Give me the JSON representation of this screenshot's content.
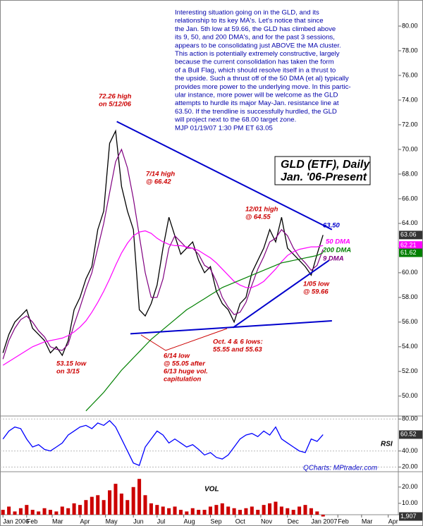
{
  "chart_data": [
    {
      "type": "line",
      "title": "GLD (ETF), Daily",
      "subtitle": "Jan. '06-Present",
      "categories": [
        null,
        null,
        null,
        null,
        null,
        null,
        null,
        null,
        null,
        null,
        null,
        null,
        null,
        null,
        null,
        null,
        null,
        null,
        null,
        null,
        null,
        null,
        null,
        null,
        null,
        null,
        null,
        null,
        null,
        null,
        null,
        null,
        null,
        null,
        null,
        null,
        null,
        null,
        null,
        null,
        null,
        null,
        null,
        null,
        null,
        null,
        null,
        null,
        null,
        null,
        null,
        null,
        null,
        null,
        null
      ],
      "xlim": [
        -0.5,
        66.7
      ],
      "ylim": [
        48.5,
        82
      ],
      "yticks": [
        {
          "value": 50,
          "label": "50.00"
        },
        {
          "value": 52,
          "label": "52.00"
        },
        {
          "value": 54,
          "label": "54.00"
        },
        {
          "value": 56,
          "label": "56.00"
        },
        {
          "value": 58,
          "label": "58.00"
        },
        {
          "value": 60,
          "label": "60.00"
        },
        {
          "value": 62,
          "label": "62.00"
        },
        {
          "value": 64,
          "label": "64.00"
        },
        {
          "value": 66,
          "label": "66.00"
        },
        {
          "value": 68,
          "label": "68.00"
        },
        {
          "value": 70,
          "label": "70.00"
        },
        {
          "value": 72,
          "label": "72.00"
        },
        {
          "value": 74,
          "label": "74.00"
        },
        {
          "value": 76,
          "label": "76.00"
        },
        {
          "value": 78,
          "label": "78.00"
        },
        {
          "value": 80,
          "label": "80.00"
        }
      ],
      "series": [
        {
          "name": "GLD",
          "color": "#000000",
          "values": [
            53.5,
            55,
            56,
            56.5,
            57,
            55.5,
            55,
            54.5,
            53.5,
            54,
            53.3,
            54.5,
            57,
            58,
            59.5,
            60.5,
            63.5,
            65,
            70.5,
            71.5,
            67,
            65,
            63.5,
            57,
            56.5,
            57.5,
            59,
            62,
            64.5,
            63,
            61.5,
            62,
            62.5,
            61,
            60,
            60.5,
            58.5,
            57.5,
            57,
            56,
            57.5,
            58,
            60,
            61,
            62,
            63.5,
            62.5,
            64.5,
            62,
            61.5,
            61,
            60.5,
            59.8,
            61.5,
            63.06
          ]
        },
        {
          "name": "9 DMA",
          "color": "#800080",
          "values": [
            53,
            54.5,
            55.5,
            56.2,
            56.5,
            56,
            55.3,
            54.8,
            54,
            53.8,
            53.7,
            54.2,
            55.8,
            57.2,
            58.7,
            60,
            62,
            64,
            66.5,
            69,
            70,
            68.5,
            66,
            63,
            60,
            58,
            58,
            59.5,
            62,
            63,
            62.5,
            62,
            62,
            61.5,
            60.6,
            60.3,
            59.3,
            58,
            57.2,
            56.6,
            56.8,
            57.6,
            59,
            60.3,
            61.3,
            62.5,
            62.8,
            63.5,
            63,
            62,
            61.3,
            60.8,
            60.2,
            60.6,
            61.9
          ]
        },
        {
          "name": "50 DMA",
          "color": "#ff00ff",
          "values": [
            52.5,
            52.8,
            53.1,
            53.4,
            53.7,
            54,
            54.2,
            54.4,
            54.5,
            54.6,
            54.7,
            54.9,
            55.2,
            55.6,
            56.1,
            56.8,
            57.6,
            58.5,
            59.5,
            60.6,
            61.6,
            62.4,
            63,
            63.3,
            63.4,
            63.2,
            62.8,
            62.5,
            62.3,
            62.2,
            62.2,
            62.1,
            62,
            61.8,
            61.5,
            61.2,
            60.8,
            60.3,
            59.8,
            59.3,
            59,
            58.8,
            58.8,
            59,
            59.3,
            59.8,
            60.3,
            60.9,
            61.4,
            61.7,
            61.9,
            62,
            62.1,
            62.1,
            62.21
          ]
        },
        {
          "name": "200 DMA",
          "color": "#008000",
          "values": [
            null,
            null,
            null,
            null,
            null,
            null,
            null,
            null,
            null,
            null,
            null,
            null,
            null,
            null,
            48.8,
            49.3,
            49.8,
            50.3,
            50.9,
            51.5,
            52.1,
            52.6,
            53.1,
            53.6,
            54.1,
            54.6,
            55,
            55.4,
            55.8,
            56.2,
            56.6,
            57,
            57.3,
            57.6,
            57.9,
            58.2,
            58.5,
            58.8,
            59,
            59.2,
            59.4,
            59.6,
            59.8,
            60,
            60.2,
            60.4,
            60.6,
            60.8,
            60.9,
            61,
            61.1,
            61.2,
            61.3,
            61.4,
            61.62
          ]
        }
      ],
      "last_labels": [
        {
          "value": 63.06,
          "label": "63.06",
          "color": "#333333"
        },
        {
          "value": 62.21,
          "label": "62.21",
          "color": "#ff00ff"
        },
        {
          "value": 61.62,
          "label": "61.62",
          "color": "#008000"
        }
      ],
      "trendlines": [
        {
          "color": "#0000cc",
          "x": [
            19.2,
            55.5
          ],
          "y": [
            72.26,
            63.5
          ]
        },
        {
          "color": "#0000cc",
          "x": [
            21.5,
            55.5
          ],
          "y": [
            55.05,
            56.1
          ]
        },
        {
          "color": "#0000cc",
          "x": [
            38.8,
            55
          ],
          "y": [
            55.55,
            61
          ]
        }
      ],
      "annotations": [
        {
          "lines": [
            "72.26 high",
            "on 5/12/06"
          ],
          "color": "#cc0000"
        },
        {
          "lines": [
            "7/14 high",
            "@ 66.42"
          ],
          "color": "#cc0000"
        },
        {
          "lines": [
            "12/01 high",
            "@ 64.55"
          ],
          "color": "#cc0000"
        },
        {
          "lines": [
            "63.50"
          ],
          "color": "#0000cc"
        },
        {
          "lines": [
            "50 DMA"
          ],
          "color": "#ff00ff"
        },
        {
          "lines": [
            "200 DMA"
          ],
          "color": "#008000"
        },
        {
          "lines": [
            "9 DMA"
          ],
          "color": "#800080"
        },
        {
          "lines": [
            "1/05 low",
            "@ 59.66"
          ],
          "color": "#cc0000"
        },
        {
          "lines": [
            "Oct. 4 & 6 lows:",
            "55.55 and 55.63"
          ],
          "color": "#cc0000"
        },
        {
          "lines": [
            "6/14 low",
            "@ 55.05 after",
            "6/13 huge vol.",
            "capitulation"
          ],
          "color": "#cc0000"
        },
        {
          "lines": [
            "53.15 low",
            "on 3/15"
          ],
          "color": "#cc0000"
        }
      ],
      "note_lines": [
        "Interesting situation going on in the GLD, and its",
        "relationship to its key MA's.  Let's notice that since",
        "the Jan. 5th low at 59.66, the GLD has climbed above",
        "its 9, 50, and 200 DMA's, and for the past 3 sessions,",
        "appears to be consolidating just ABOVE the MA cluster.",
        "This action is potentially extremely constructive, largely",
        "because the current consolidation has taken the form",
        "of a Bull Flag, which should resolve itself in a thrust to",
        "the upside. Such a thrust off of the 50 DMA (et al) typically",
        "provides more power to the underlying move.  In this partic-",
        "ular instance, more power will be welcome as the GLD",
        "attempts to hurdle its major May-Jan. resistance line at",
        "63.50. If the trendline is successfully hurdled, the GLD",
        "will project next to the 68.00 target zone.",
        "MJP 01/19/07 1:30 PM ET 63.05"
      ]
    },
    {
      "type": "line",
      "title": "RSI",
      "source": "QCharts: MPtrader.com",
      "ylim": [
        15,
        82
      ],
      "yticks": [
        {
          "value": 20,
          "label": "20.00"
        },
        {
          "value": 40,
          "label": "40.00"
        },
        {
          "value": 80,
          "label": "80.00"
        }
      ],
      "series": [
        {
          "name": "RSI",
          "color": "#0000ff",
          "values": [
            55,
            65,
            70,
            68,
            55,
            45,
            48,
            42,
            40,
            45,
            50,
            60,
            65,
            70,
            72,
            68,
            75,
            72,
            78,
            70,
            55,
            40,
            25,
            22,
            45,
            55,
            65,
            60,
            50,
            55,
            50,
            45,
            48,
            42,
            35,
            38,
            32,
            30,
            35,
            45,
            55,
            60,
            62,
            58,
            65,
            60,
            70,
            55,
            50,
            45,
            40,
            38,
            55,
            52,
            60.52
          ]
        }
      ],
      "last_labels": [
        {
          "value": 60.52,
          "label": "60.52",
          "color": "#333333"
        }
      ]
    },
    {
      "type": "bar",
      "title": "VOL",
      "ylim": [
        3,
        29
      ],
      "color": "#cc0000",
      "yticks": [
        {
          "value": 10,
          "label": "10.00"
        },
        {
          "value": 20,
          "label": "20.00"
        }
      ],
      "values": [
        6,
        8,
        5,
        7,
        9,
        6,
        5,
        7,
        6,
        5,
        8,
        7,
        10,
        9,
        12,
        14,
        15,
        12,
        18,
        22,
        16,
        12,
        20,
        25,
        15,
        10,
        9,
        8,
        7,
        8,
        6,
        5,
        7,
        6,
        6,
        8,
        9,
        10,
        8,
        7,
        6,
        7,
        8,
        6,
        9,
        10,
        11,
        8,
        7,
        6,
        8,
        9,
        7,
        5,
        1.907
      ],
      "last_labels": [
        {
          "value": 1.907,
          "label": "1,907",
          "color": "#333333"
        }
      ],
      "xticks": [
        {
          "value": 0,
          "label": "Jan 2006"
        },
        {
          "value": 4,
          "label": "Feb"
        },
        {
          "value": 8.3,
          "label": "Mar"
        },
        {
          "value": 13,
          "label": "Apr"
        },
        {
          "value": 17.3,
          "label": "May"
        },
        {
          "value": 22,
          "label": "Jun"
        },
        {
          "value": 26,
          "label": "Jul"
        },
        {
          "value": 30.5,
          "label": "Aug"
        },
        {
          "value": 35,
          "label": "Sep"
        },
        {
          "value": 39.2,
          "label": "Oct"
        },
        {
          "value": 43.5,
          "label": "Nov"
        },
        {
          "value": 48,
          "label": "Dec"
        },
        {
          "value": 52,
          "label": "Jan 2007"
        },
        {
          "value": 56.5,
          "label": "Feb"
        },
        {
          "value": 60.5,
          "label": "Mar"
        },
        {
          "value": 65,
          "label": "Apr"
        }
      ]
    }
  ]
}
